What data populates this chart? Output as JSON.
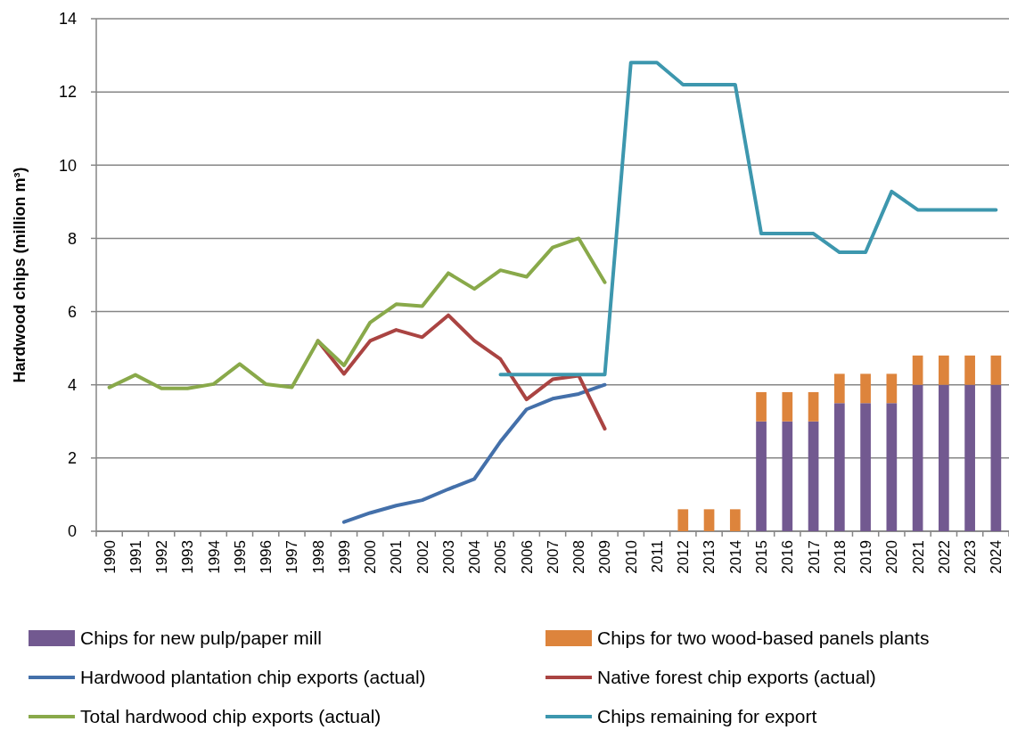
{
  "chart_data": {
    "type": "bar",
    "ylabel": "Hardwood chips (million m³)",
    "categories": [
      "1990",
      "1991",
      "1992",
      "1993",
      "1994",
      "1995",
      "1996",
      "1997",
      "1998",
      "1999",
      "2000",
      "2001",
      "2002",
      "2003",
      "2004",
      "2005",
      "2006",
      "2007",
      "2008",
      "2009",
      "2010",
      "2011",
      "2012",
      "2013",
      "2014",
      "2015",
      "2016",
      "2017",
      "2018",
      "2019",
      "2020",
      "2021",
      "2022",
      "2023",
      "2024"
    ],
    "stacked": true,
    "ylim": [
      0,
      14
    ],
    "yticks": [
      0,
      2,
      4,
      6,
      8,
      10,
      12,
      14
    ],
    "grid": "y",
    "legend": "bottom",
    "series": [
      {
        "name": "Chips for new pulp/paper mill",
        "color": "#725990",
        "values": [
          null,
          null,
          null,
          null,
          null,
          null,
          null,
          null,
          null,
          null,
          null,
          null,
          null,
          null,
          null,
          null,
          null,
          null,
          null,
          null,
          null,
          null,
          null,
          null,
          null,
          3,
          3,
          3,
          3.5,
          3.5,
          3.5,
          4,
          4,
          4,
          4
        ]
      },
      {
        "name": "Chips for two wood-based panels plants",
        "color": "#dd843c",
        "values": [
          null,
          null,
          null,
          null,
          null,
          null,
          null,
          null,
          null,
          null,
          null,
          null,
          null,
          null,
          null,
          null,
          null,
          null,
          null,
          null,
          null,
          null,
          0.6,
          0.6,
          0.6,
          0.8,
          0.8,
          0.8,
          0.8,
          0.8,
          0.8,
          0.8,
          0.8,
          0.8,
          0.8
        ]
      },
      {
        "name": "Hardwood plantation chip exports (actual)",
        "type": "line",
        "color": "#4470aa",
        "values": [
          null,
          null,
          null,
          null,
          null,
          null,
          null,
          null,
          null,
          0.25,
          0.5,
          0.7,
          0.85,
          1.15,
          1.43,
          2.45,
          3.33,
          3.62,
          3.75,
          4.0,
          null,
          null,
          null,
          null,
          null,
          null,
          null,
          null,
          null,
          null,
          null,
          null,
          null,
          null,
          null
        ]
      },
      {
        "name": "Native forest chip exports (actual)",
        "type": "line",
        "color": "#aa4442",
        "values": [
          null,
          null,
          null,
          null,
          null,
          null,
          null,
          null,
          5.2,
          4.3,
          5.2,
          5.5,
          5.3,
          5.9,
          5.2,
          4.7,
          3.6,
          4.15,
          4.25,
          2.8,
          null,
          null,
          null,
          null,
          null,
          null,
          null,
          null,
          null,
          null,
          null,
          null,
          null,
          null,
          null
        ]
      },
      {
        "name": "Total hardwood chip exports (actual)",
        "type": "line",
        "color": "#89a94a",
        "values": [
          3.93,
          4.27,
          3.9,
          3.9,
          4.02,
          4.57,
          4.02,
          3.93,
          5.2,
          4.53,
          5.7,
          6.2,
          6.15,
          7.05,
          6.62,
          7.13,
          6.95,
          7.75,
          8.0,
          6.8,
          null,
          null,
          null,
          null,
          null,
          null,
          null,
          null,
          null,
          null,
          null,
          null,
          null,
          null,
          null
        ]
      },
      {
        "name": "Chips remaining for export",
        "type": "line",
        "color": "#3d97ae",
        "values": [
          null,
          null,
          null,
          null,
          null,
          null,
          null,
          null,
          null,
          null,
          null,
          null,
          null,
          null,
          null,
          4.28,
          4.28,
          4.28,
          4.28,
          4.28,
          12.8,
          12.8,
          12.2,
          12.2,
          12.2,
          8.13,
          8.13,
          8.13,
          7.62,
          7.62,
          9.28,
          8.78,
          8.78,
          8.78,
          8.78
        ]
      }
    ]
  }
}
